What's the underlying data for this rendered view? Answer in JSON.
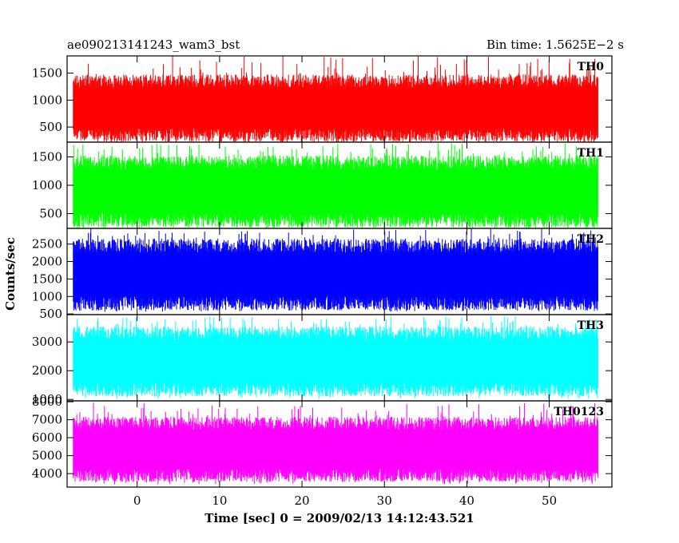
{
  "header": {
    "left_title": "ae090213141243_wam3_bst",
    "right_title": "Bin time: 1.5625E−2 s"
  },
  "chart_data": {
    "type": "line",
    "style": "histogram-step",
    "xlabel": "Time [sec] 0 = 2009/02/13 14:12:43.521",
    "ylabel": "Counts/sec",
    "xlim": [
      -8.5,
      57.6
    ],
    "x_ticks": [
      0,
      10,
      20,
      30,
      40,
      50
    ],
    "x_tick_labels": [
      "0",
      "10",
      "20",
      "30",
      "40",
      "50"
    ],
    "x_data_range": [
      -7.75,
      55.9
    ],
    "panels": [
      {
        "name": "TH0",
        "color": "#ff0000",
        "ylim": [
          220,
          1820
        ],
        "y_ticks": [
          500,
          1000,
          1500
        ],
        "y_tick_labels": [
          "500",
          "1000",
          "1500"
        ],
        "typical_low": 350,
        "typical_high": 1350,
        "extreme_low": 220,
        "extreme_high": 1820
      },
      {
        "name": "TH1",
        "color": "#00ff00",
        "ylim": [
          240,
          1760
        ],
        "y_ticks": [
          500,
          1000,
          1500
        ],
        "y_tick_labels": [
          "500",
          "1000",
          "1500"
        ],
        "typical_low": 380,
        "typical_high": 1400,
        "extreme_low": 240,
        "extreme_high": 1740
      },
      {
        "name": "TH2",
        "color": "#0000ff",
        "ylim": [
          480,
          2950
        ],
        "y_ticks": [
          500,
          1000,
          1500,
          2000,
          2500
        ],
        "y_tick_labels": [
          "500",
          "1000",
          "1500",
          "2000",
          "2500"
        ],
        "typical_low": 800,
        "typical_high": 2450,
        "extreme_low": 560,
        "extreme_high": 2950
      },
      {
        "name": "TH3",
        "color": "#00ffff",
        "ylim": [
          950,
          3950
        ],
        "y_ticks": [
          1000,
          2000,
          3000
        ],
        "y_tick_labels": [
          "1000",
          "2000",
          "3000"
        ],
        "typical_low": 1350,
        "typical_high": 3300,
        "extreme_low": 1020,
        "extreme_high": 3900
      },
      {
        "name": "TH0123",
        "color": "#ff00ff",
        "ylim": [
          3250,
          8050
        ],
        "y_ticks": [
          4000,
          5000,
          6000,
          7000,
          8000
        ],
        "y_tick_labels": [
          "4000",
          "5000",
          "6000",
          "7000",
          "8000"
        ],
        "typical_low": 3900,
        "typical_high": 6800,
        "extreme_low": 3400,
        "extreme_high": 7950
      }
    ]
  }
}
